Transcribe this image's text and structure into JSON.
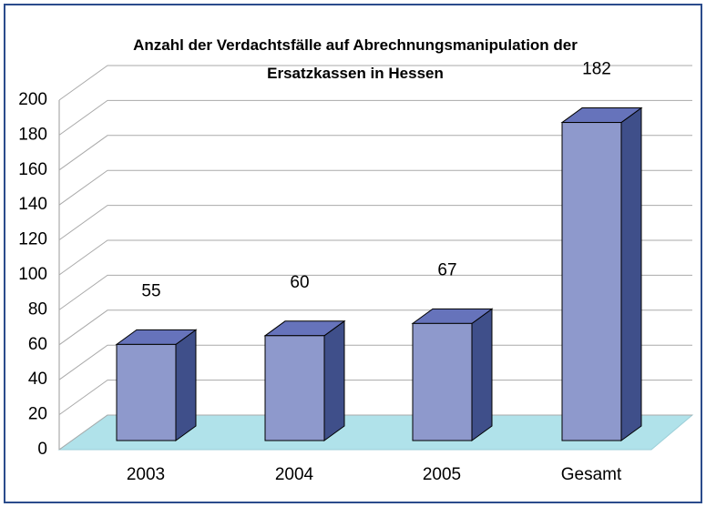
{
  "chart_data": {
    "type": "bar3d",
    "title": "Anzahl der Verdachtsfälle auf Abrechnungsmanipulation der Ersatzkassen in Hessen",
    "categories": [
      "2003",
      "2004",
      "2005",
      "Gesamt"
    ],
    "values": [
      55,
      60,
      67,
      182
    ],
    "color": "#8e99cc",
    "ylim": [
      0,
      200
    ],
    "yticks": [
      0,
      20,
      40,
      60,
      80,
      100,
      120,
      140,
      160,
      180,
      200
    ],
    "grid": true
  }
}
